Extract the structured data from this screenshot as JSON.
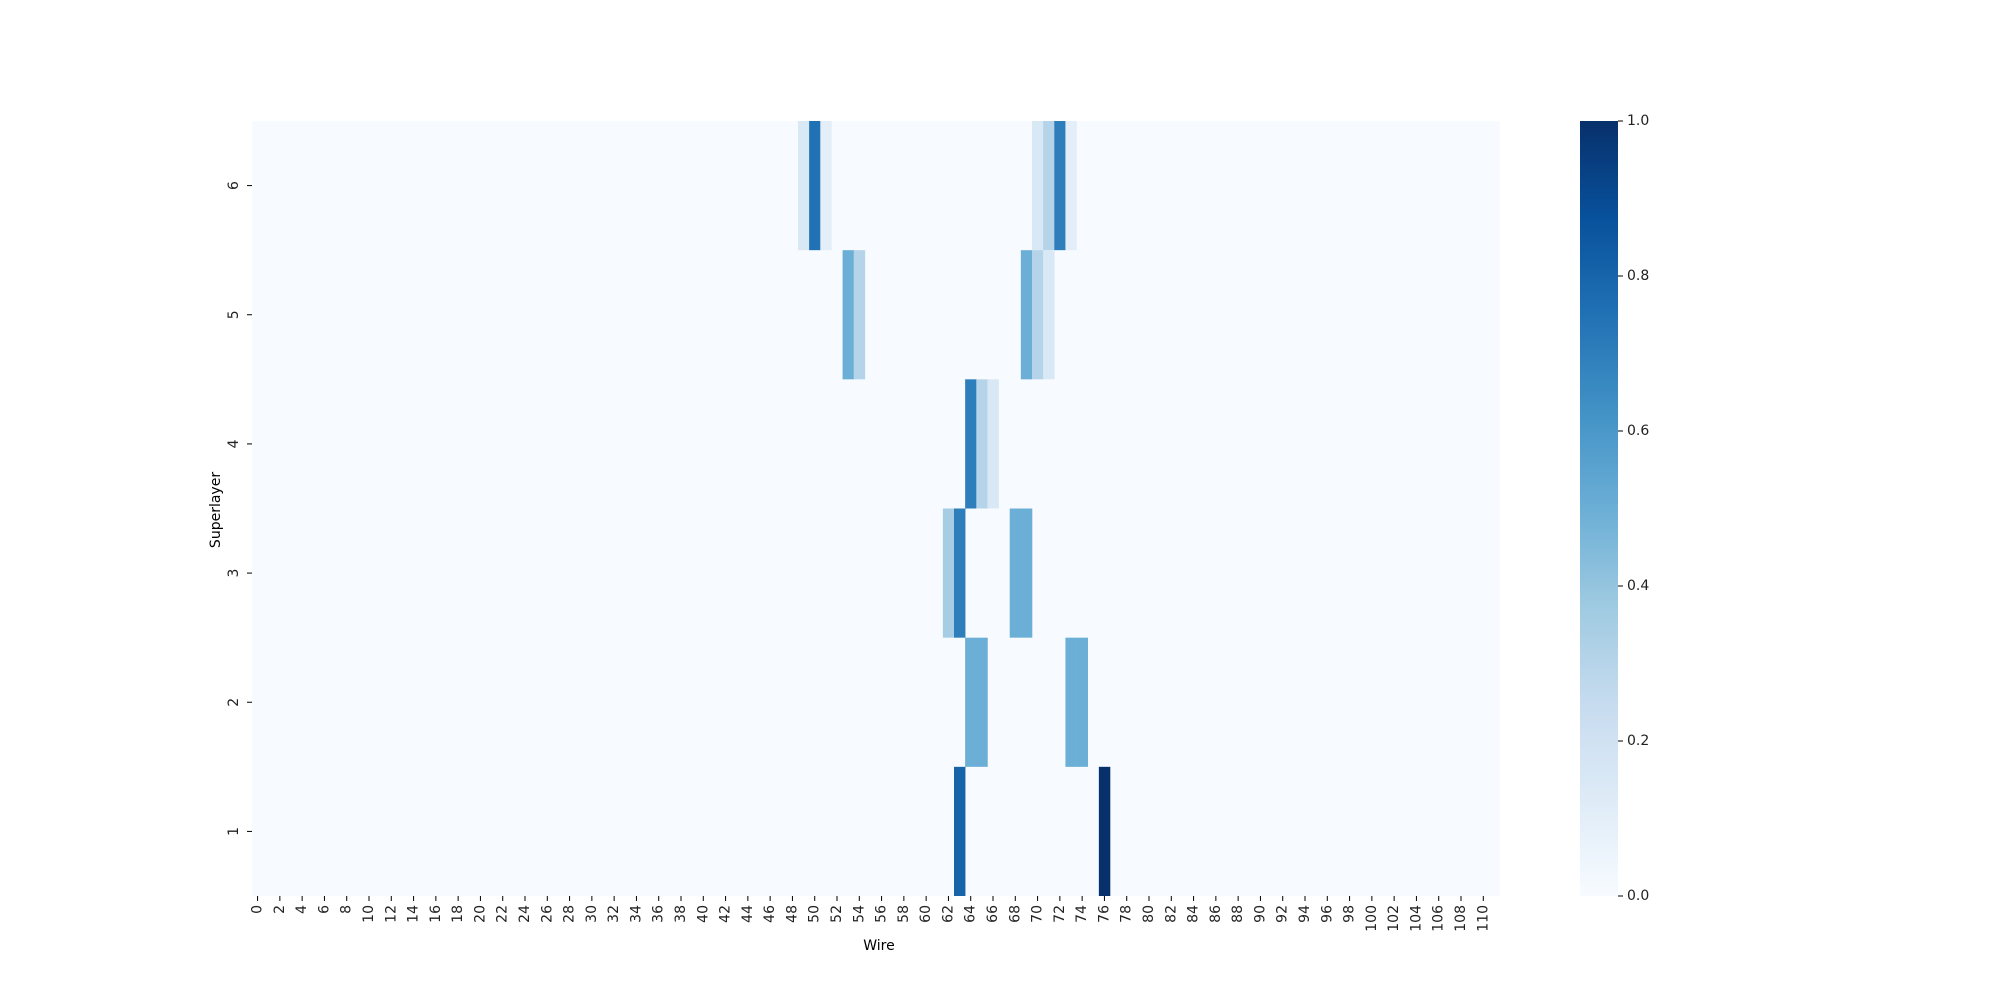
{
  "chart_data": {
    "type": "heatmap",
    "title": "",
    "xlabel": "Wire",
    "ylabel": "Superlayer",
    "x_count": 112,
    "x_tick_step": 2,
    "x_range": [
      0,
      111
    ],
    "y_rows_top_to_bottom": [
      6,
      5,
      4,
      3,
      2,
      1
    ],
    "colormap": "Blues",
    "colormap_low": "#f7fbff",
    "colormap_high": "#08306b",
    "value_range": [
      0.0,
      1.0
    ],
    "colorbar": {
      "ticks": [
        0.0,
        0.2,
        0.4,
        0.6,
        0.8,
        1.0
      ],
      "tick_labels": [
        "0.0",
        "0.2",
        "0.4",
        "0.6",
        "0.8",
        "1.0"
      ],
      "placement": "right"
    },
    "grid": false,
    "default_value": 0.0,
    "cells": [
      {
        "superlayer": 6,
        "wire": 49,
        "value": 0.15
      },
      {
        "superlayer": 6,
        "wire": 50,
        "value": 0.75
      },
      {
        "superlayer": 6,
        "wire": 51,
        "value": 0.1
      },
      {
        "superlayer": 6,
        "wire": 70,
        "value": 0.15
      },
      {
        "superlayer": 6,
        "wire": 71,
        "value": 0.3
      },
      {
        "superlayer": 6,
        "wire": 72,
        "value": 0.7
      },
      {
        "superlayer": 6,
        "wire": 73,
        "value": 0.1
      },
      {
        "superlayer": 5,
        "wire": 53,
        "value": 0.5
      },
      {
        "superlayer": 5,
        "wire": 54,
        "value": 0.3
      },
      {
        "superlayer": 5,
        "wire": 69,
        "value": 0.5
      },
      {
        "superlayer": 5,
        "wire": 70,
        "value": 0.3
      },
      {
        "superlayer": 5,
        "wire": 71,
        "value": 0.15
      },
      {
        "superlayer": 4,
        "wire": 64,
        "value": 0.7
      },
      {
        "superlayer": 4,
        "wire": 65,
        "value": 0.3
      },
      {
        "superlayer": 4,
        "wire": 66,
        "value": 0.15
      },
      {
        "superlayer": 3,
        "wire": 62,
        "value": 0.35
      },
      {
        "superlayer": 3,
        "wire": 63,
        "value": 0.7
      },
      {
        "superlayer": 3,
        "wire": 68,
        "value": 0.5
      },
      {
        "superlayer": 3,
        "wire": 69,
        "value": 0.5
      },
      {
        "superlayer": 2,
        "wire": 64,
        "value": 0.5
      },
      {
        "superlayer": 2,
        "wire": 65,
        "value": 0.5
      },
      {
        "superlayer": 2,
        "wire": 73,
        "value": 0.5
      },
      {
        "superlayer": 2,
        "wire": 74,
        "value": 0.5
      },
      {
        "superlayer": 1,
        "wire": 63,
        "value": 0.8
      },
      {
        "superlayer": 1,
        "wire": 76,
        "value": 1.0
      }
    ]
  }
}
